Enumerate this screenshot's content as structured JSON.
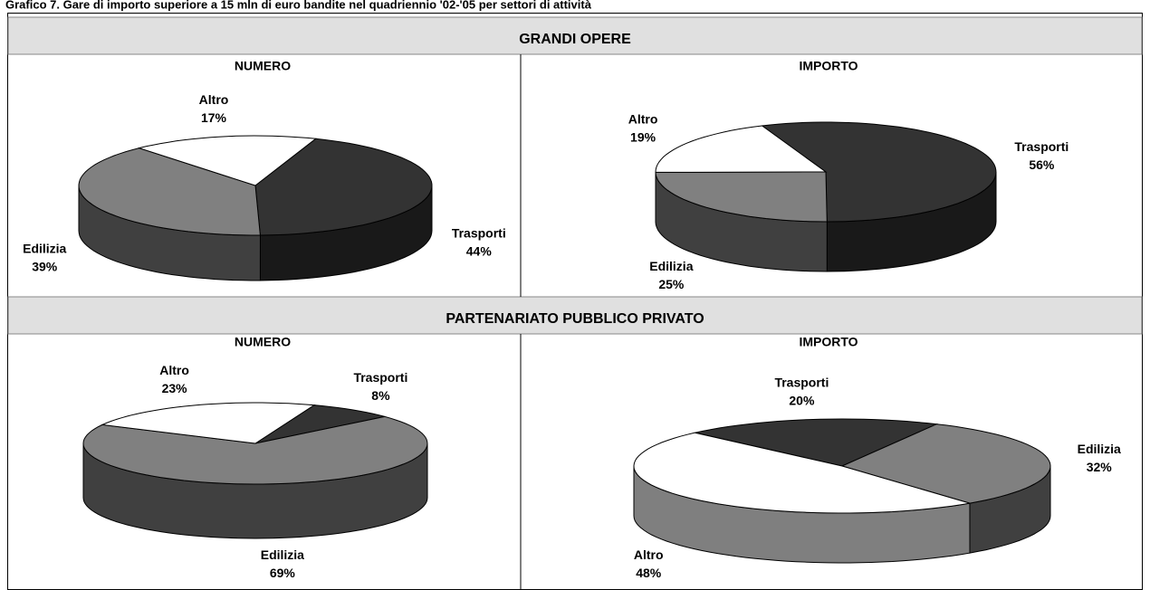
{
  "title": "Grafico 7. Gare di importo superiore a 15 mln di euro bandite nel quadriennio '02-'05 per settori di attività",
  "sections": [
    {
      "title": "GRANDI OPERE"
    },
    {
      "title": "PARTENARIATO PUBBLICO PRIVATO"
    }
  ],
  "chart_data": [
    {
      "type": "pie",
      "title": "NUMERO",
      "categories": [
        "Trasporti",
        "Edilizia",
        "Altro"
      ],
      "values": [
        44,
        39,
        17
      ],
      "value_labels": [
        "44%",
        "39%",
        "17%"
      ],
      "colors": [
        "#333333",
        "#808080",
        "#ffffff"
      ]
    },
    {
      "type": "pie",
      "title": "IMPORTO",
      "categories": [
        "Trasporti",
        "Edilizia",
        "Altro"
      ],
      "values": [
        56,
        25,
        19
      ],
      "value_labels": [
        "56%",
        "25%",
        "19%"
      ],
      "colors": [
        "#333333",
        "#808080",
        "#ffffff"
      ]
    },
    {
      "type": "pie",
      "title": "NUMERO",
      "categories": [
        "Trasporti",
        "Edilizia",
        "Altro"
      ],
      "values": [
        8,
        69,
        23
      ],
      "value_labels": [
        "8%",
        "69%",
        "23%"
      ],
      "colors": [
        "#333333",
        "#808080",
        "#ffffff"
      ]
    },
    {
      "type": "pie",
      "title": "IMPORTO",
      "categories": [
        "Trasporti",
        "Edilizia",
        "Altro"
      ],
      "values": [
        20,
        32,
        48
      ],
      "value_labels": [
        "20%",
        "32%",
        "48%"
      ],
      "colors": [
        "#333333",
        "#808080",
        "#ffffff"
      ]
    }
  ]
}
